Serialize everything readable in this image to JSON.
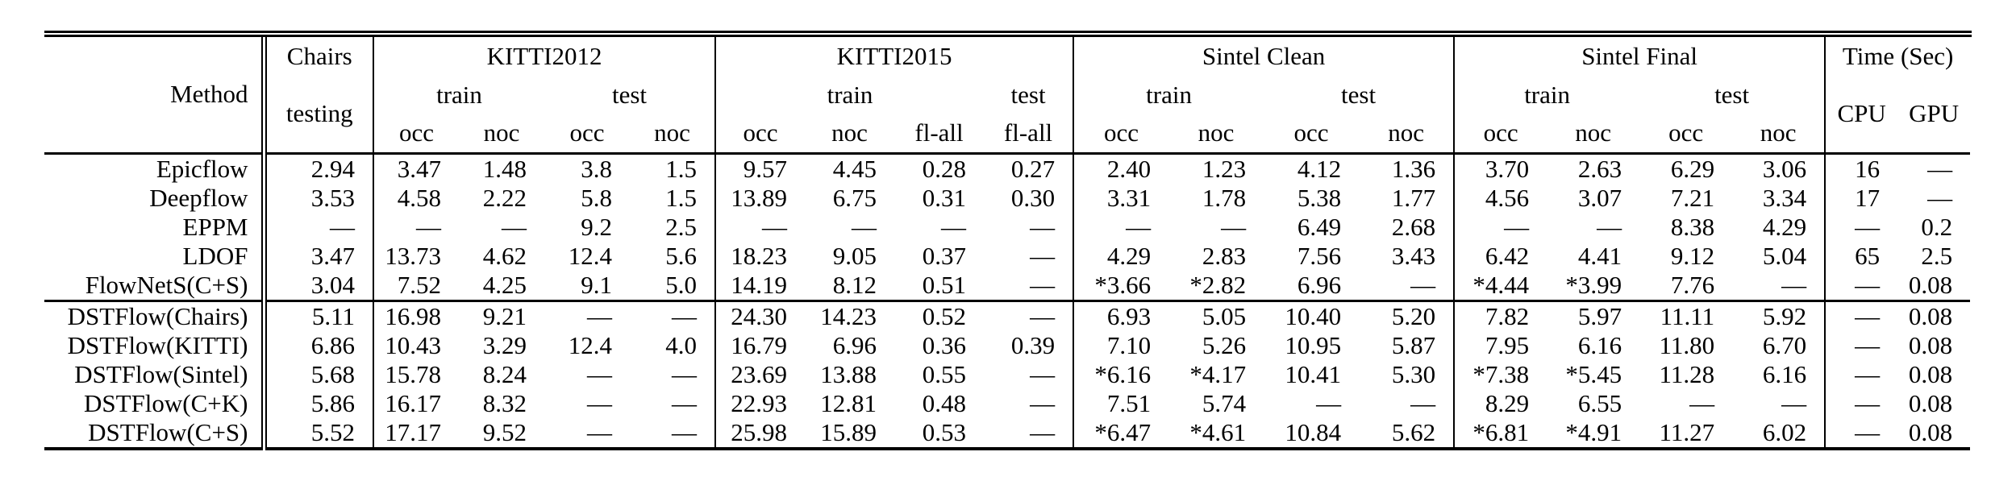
{
  "header": {
    "method": "Method",
    "chairs": {
      "name": "Chairs",
      "sub": "testing"
    },
    "kitti2012": {
      "name": "KITTI2012",
      "train": "train",
      "test": "test",
      "cols": [
        "occ",
        "noc",
        "occ",
        "noc"
      ]
    },
    "kitti2015": {
      "name": "KITTI2015",
      "train": "train",
      "test": "test",
      "cols": [
        "occ",
        "noc",
        "fl-all",
        "fl-all"
      ]
    },
    "sintel_clean": {
      "name": "Sintel Clean",
      "train": "train",
      "test": "test",
      "cols": [
        "occ",
        "noc",
        "occ",
        "noc"
      ]
    },
    "sintel_final": {
      "name": "Sintel Final",
      "train": "train",
      "test": "test",
      "cols": [
        "occ",
        "noc",
        "occ",
        "noc"
      ]
    },
    "time": {
      "name": "Time (Sec)",
      "cpu": "CPU",
      "gpu": "GPU"
    }
  },
  "value_column_keys": [
    "chairs-testing",
    "kitti2012-train-occ",
    "kitti2012-train-noc",
    "kitti2012-test-occ",
    "kitti2012-test-noc",
    "kitti2015-train-occ",
    "kitti2015-train-noc",
    "kitti2015-train-fl-all",
    "kitti2015-test-fl-all",
    "sintelclean-train-occ",
    "sintelclean-train-noc",
    "sintelclean-test-occ",
    "sintelclean-test-noc",
    "sintelfinal-train-occ",
    "sintelfinal-train-noc",
    "sintelfinal-test-occ",
    "sintelfinal-test-noc",
    "time-cpu",
    "time-gpu"
  ],
  "sections": [
    {
      "rows": [
        {
          "method": "Epicflow",
          "values": [
            "2.94",
            "3.47",
            "1.48",
            "3.8",
            "1.5",
            "9.57",
            "4.45",
            "0.28",
            "0.27",
            "2.40",
            "1.23",
            "4.12",
            "1.36",
            "3.70",
            "2.63",
            "6.29",
            "3.06",
            "16",
            "—"
          ]
        },
        {
          "method": "Deepflow",
          "values": [
            "3.53",
            "4.58",
            "2.22",
            "5.8",
            "1.5",
            "13.89",
            "6.75",
            "0.31",
            "0.30",
            "3.31",
            "1.78",
            "5.38",
            "1.77",
            "4.56",
            "3.07",
            "7.21",
            "3.34",
            "17",
            "—"
          ]
        },
        {
          "method": "EPPM",
          "values": [
            "—",
            "—",
            "—",
            "9.2",
            "2.5",
            "—",
            "—",
            "—",
            "—",
            "—",
            "—",
            "6.49",
            "2.68",
            "—",
            "—",
            "8.38",
            "4.29",
            "—",
            "0.2"
          ]
        },
        {
          "method": "LDOF",
          "values": [
            "3.47",
            "13.73",
            "4.62",
            "12.4",
            "5.6",
            "18.23",
            "9.05",
            "0.37",
            "—",
            "4.29",
            "2.83",
            "7.56",
            "3.43",
            "6.42",
            "4.41",
            "9.12",
            "5.04",
            "65",
            "2.5"
          ]
        },
        {
          "method": "FlowNetS(C+S)",
          "values": [
            "3.04",
            "7.52",
            "4.25",
            "9.1",
            "5.0",
            "14.19",
            "8.12",
            "0.51",
            "—",
            "*3.66",
            "*2.82",
            "6.96",
            "—",
            "*4.44",
            "*3.99",
            "7.76",
            "—",
            "—",
            "0.08"
          ]
        }
      ]
    },
    {
      "rows": [
        {
          "method": "DSTFlow(Chairs)",
          "values": [
            "5.11",
            "16.98",
            "9.21",
            "—",
            "—",
            "24.30",
            "14.23",
            "0.52",
            "—",
            "6.93",
            "5.05",
            "10.40",
            "5.20",
            "7.82",
            "5.97",
            "11.11",
            "5.92",
            "—",
            "0.08"
          ]
        },
        {
          "method": "DSTFlow(KITTI)",
          "values": [
            "6.86",
            "10.43",
            "3.29",
            "12.4",
            "4.0",
            "16.79",
            "6.96",
            "0.36",
            "0.39",
            "7.10",
            "5.26",
            "10.95",
            "5.87",
            "7.95",
            "6.16",
            "11.80",
            "6.70",
            "—",
            "0.08"
          ]
        },
        {
          "method": "DSTFlow(Sintel)",
          "values": [
            "5.68",
            "15.78",
            "8.24",
            "—",
            "—",
            "23.69",
            "13.88",
            "0.55",
            "—",
            "*6.16",
            "*4.17",
            "10.41",
            "5.30",
            "*7.38",
            "*5.45",
            "11.28",
            "6.16",
            "—",
            "0.08"
          ]
        },
        {
          "method": "DSTFlow(C+K)",
          "values": [
            "5.86",
            "16.17",
            "8.32",
            "—",
            "—",
            "22.93",
            "12.81",
            "0.48",
            "—",
            "7.51",
            "5.74",
            "—",
            "—",
            "8.29",
            "6.55",
            "—",
            "—",
            "—",
            "0.08"
          ]
        },
        {
          "method": "DSTFlow(C+S)",
          "values": [
            "5.52",
            "17.17",
            "9.52",
            "—",
            "—",
            "25.98",
            "15.89",
            "0.53",
            "—",
            "*6.47",
            "*4.61",
            "10.84",
            "5.62",
            "*6.81",
            "*4.91",
            "11.27",
            "6.02",
            "—",
            "0.08"
          ]
        }
      ]
    }
  ]
}
